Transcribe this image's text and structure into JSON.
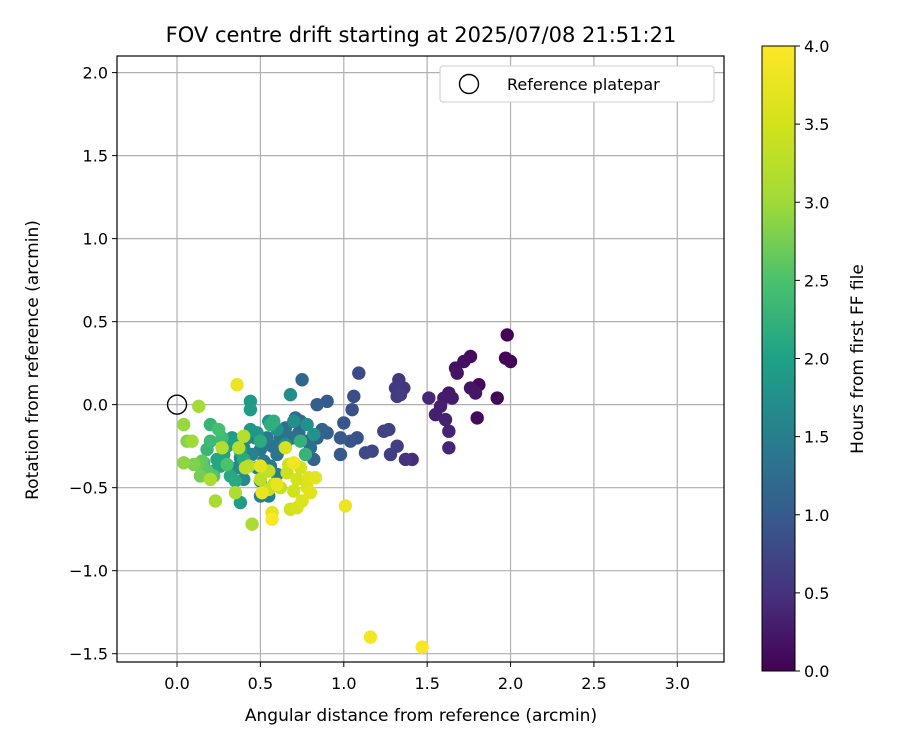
{
  "chart_data": {
    "type": "scatter",
    "title": "FOV centre drift starting at 2025/07/08 21:51:21",
    "xlabel": "Angular distance from reference (arcmin)",
    "ylabel": "Rotation from reference (arcmin)",
    "xlim": [
      -0.36,
      3.28
    ],
    "ylim": [
      -1.55,
      2.1
    ],
    "x_ticks": [
      0.0,
      0.5,
      1.0,
      1.5,
      2.0,
      2.5,
      3.0
    ],
    "x_tick_labels": [
      "0.0",
      "0.5",
      "1.0",
      "1.5",
      "2.0",
      "2.5",
      "3.0"
    ],
    "y_ticks": [
      -1.5,
      -1.0,
      -0.5,
      0.0,
      0.5,
      1.0,
      1.5,
      2.0
    ],
    "y_tick_labels": [
      "−1.5",
      "−1.0",
      "−0.5",
      "0.0",
      "0.5",
      "1.0",
      "1.5",
      "2.0"
    ],
    "grid": true,
    "legend": {
      "position": "top-right",
      "entries": [
        "Reference platepar"
      ]
    },
    "reference_point": {
      "x": 0.0,
      "y": 0.0,
      "label": "Reference platepar"
    },
    "colorbar": {
      "label": "Hours from first FF file",
      "colormap": "viridis",
      "range": [
        0.0,
        4.0
      ],
      "ticks": [
        0.0,
        0.5,
        1.0,
        1.5,
        2.0,
        2.5,
        3.0,
        3.5,
        4.0
      ],
      "tick_labels": [
        "0.0",
        "0.5",
        "1.0",
        "1.5",
        "2.0",
        "2.5",
        "3.0",
        "3.5",
        "4.0"
      ]
    },
    "points": [
      {
        "x": 1.98,
        "y": 0.42,
        "c": 0.02
      },
      {
        "x": 1.97,
        "y": 0.28,
        "c": 0.03
      },
      {
        "x": 2.0,
        "y": 0.26,
        "c": 0.04
      },
      {
        "x": 1.92,
        "y": 0.04,
        "c": 0.05
      },
      {
        "x": 1.81,
        "y": 0.12,
        "c": 0.08
      },
      {
        "x": 1.8,
        "y": -0.08,
        "c": 0.1
      },
      {
        "x": 1.76,
        "y": 0.29,
        "c": 0.12
      },
      {
        "x": 1.72,
        "y": 0.26,
        "c": 0.15
      },
      {
        "x": 1.67,
        "y": 0.22,
        "c": 0.17
      },
      {
        "x": 1.68,
        "y": 0.19,
        "c": 0.18
      },
      {
        "x": 1.76,
        "y": 0.1,
        "c": 0.2
      },
      {
        "x": 1.79,
        "y": 0.07,
        "c": 0.22
      },
      {
        "x": 1.63,
        "y": 0.07,
        "c": 0.24
      },
      {
        "x": 1.65,
        "y": 0.04,
        "c": 0.26
      },
      {
        "x": 1.6,
        "y": 0.04,
        "c": 0.28
      },
      {
        "x": 1.58,
        "y": -0.01,
        "c": 0.3
      },
      {
        "x": 1.55,
        "y": -0.06,
        "c": 0.32
      },
      {
        "x": 1.61,
        "y": -0.09,
        "c": 0.34
      },
      {
        "x": 1.63,
        "y": -0.16,
        "c": 0.36
      },
      {
        "x": 1.63,
        "y": -0.26,
        "c": 0.38
      },
      {
        "x": 1.51,
        "y": 0.04,
        "c": 0.4
      },
      {
        "x": 1.41,
        "y": -0.33,
        "c": 0.45
      },
      {
        "x": 1.37,
        "y": -0.33,
        "c": 0.5
      },
      {
        "x": 1.36,
        "y": 0.1,
        "c": 0.52
      },
      {
        "x": 1.33,
        "y": 0.15,
        "c": 0.55
      },
      {
        "x": 1.31,
        "y": 0.1,
        "c": 0.58
      },
      {
        "x": 1.32,
        "y": 0.05,
        "c": 0.6
      },
      {
        "x": 1.34,
        "y": 0.06,
        "c": 0.62
      },
      {
        "x": 1.32,
        "y": -0.25,
        "c": 0.64
      },
      {
        "x": 1.28,
        "y": -0.3,
        "c": 0.66
      },
      {
        "x": 1.27,
        "y": -0.15,
        "c": 0.68
      },
      {
        "x": 1.24,
        "y": -0.16,
        "c": 0.7
      },
      {
        "x": 1.17,
        "y": -0.28,
        "c": 0.74
      },
      {
        "x": 1.13,
        "y": -0.29,
        "c": 0.78
      },
      {
        "x": 1.09,
        "y": 0.19,
        "c": 0.8
      },
      {
        "x": 1.06,
        "y": 0.05,
        "c": 0.83
      },
      {
        "x": 1.05,
        "y": -0.03,
        "c": 0.86
      },
      {
        "x": 1.08,
        "y": -0.2,
        "c": 0.88
      },
      {
        "x": 1.04,
        "y": -0.22,
        "c": 0.9
      },
      {
        "x": 1.0,
        "y": -0.11,
        "c": 0.93
      },
      {
        "x": 0.98,
        "y": -0.2,
        "c": 0.96
      },
      {
        "x": 0.98,
        "y": -0.3,
        "c": 0.98
      },
      {
        "x": 0.9,
        "y": 0.02,
        "c": 1.0
      },
      {
        "x": 0.84,
        "y": 0.0,
        "c": 1.03
      },
      {
        "x": 0.9,
        "y": -0.17,
        "c": 1.06
      },
      {
        "x": 0.87,
        "y": -0.15,
        "c": 1.08
      },
      {
        "x": 0.84,
        "y": -0.2,
        "c": 1.1
      },
      {
        "x": 0.82,
        "y": -0.33,
        "c": 1.12
      },
      {
        "x": 0.75,
        "y": 0.15,
        "c": 1.15
      },
      {
        "x": 0.74,
        "y": -0.1,
        "c": 1.18
      },
      {
        "x": 0.71,
        "y": -0.08,
        "c": 1.2
      },
      {
        "x": 0.73,
        "y": -0.17,
        "c": 1.22
      },
      {
        "x": 0.78,
        "y": -0.22,
        "c": 1.24
      },
      {
        "x": 0.8,
        "y": -0.26,
        "c": 1.26
      },
      {
        "x": 0.69,
        "y": -0.2,
        "c": 1.28
      },
      {
        "x": 0.65,
        "y": -0.14,
        "c": 1.3
      },
      {
        "x": 0.62,
        "y": -0.2,
        "c": 1.32
      },
      {
        "x": 0.57,
        "y": -0.25,
        "c": 1.34
      },
      {
        "x": 0.6,
        "y": -0.3,
        "c": 1.36
      },
      {
        "x": 0.54,
        "y": -0.2,
        "c": 1.38
      },
      {
        "x": 0.5,
        "y": -0.27,
        "c": 1.4
      },
      {
        "x": 0.52,
        "y": -0.34,
        "c": 1.42
      },
      {
        "x": 0.56,
        "y": -0.37,
        "c": 1.44
      },
      {
        "x": 0.6,
        "y": -0.42,
        "c": 1.46
      },
      {
        "x": 0.5,
        "y": -0.46,
        "c": 1.48
      },
      {
        "x": 0.5,
        "y": -0.55,
        "c": 1.5
      },
      {
        "x": 0.55,
        "y": -0.55,
        "c": 1.52
      },
      {
        "x": 0.48,
        "y": -0.38,
        "c": 1.54
      },
      {
        "x": 0.45,
        "y": -0.3,
        "c": 1.56
      },
      {
        "x": 0.42,
        "y": -0.2,
        "c": 1.58
      },
      {
        "x": 0.4,
        "y": -0.26,
        "c": 1.6
      },
      {
        "x": 0.47,
        "y": -0.2,
        "c": 1.62
      },
      {
        "x": 0.38,
        "y": -0.32,
        "c": 1.64
      },
      {
        "x": 0.36,
        "y": -0.38,
        "c": 1.66
      },
      {
        "x": 0.4,
        "y": -0.45,
        "c": 1.68
      },
      {
        "x": 0.68,
        "y": 0.06,
        "c": 1.7
      },
      {
        "x": 0.7,
        "y": -0.1,
        "c": 1.72
      },
      {
        "x": 0.65,
        "y": -0.24,
        "c": 1.74
      },
      {
        "x": 0.78,
        "y": -0.12,
        "c": 1.76
      },
      {
        "x": 0.82,
        "y": -0.18,
        "c": 1.78
      },
      {
        "x": 0.6,
        "y": -0.15,
        "c": 1.8
      },
      {
        "x": 0.55,
        "y": -0.1,
        "c": 1.82
      },
      {
        "x": 0.48,
        "y": -0.17,
        "c": 1.84
      },
      {
        "x": 0.44,
        "y": -0.15,
        "c": 1.86
      },
      {
        "x": 0.44,
        "y": 0.02,
        "c": 1.88
      },
      {
        "x": 0.44,
        "y": -0.03,
        "c": 1.9
      },
      {
        "x": 0.38,
        "y": -0.59,
        "c": 1.92
      },
      {
        "x": 0.33,
        "y": -0.2,
        "c": 1.94
      },
      {
        "x": 0.35,
        "y": -0.23,
        "c": 1.96
      },
      {
        "x": 0.38,
        "y": -0.28,
        "c": 1.98
      },
      {
        "x": 0.3,
        "y": -0.25,
        "c": 2.0
      },
      {
        "x": 0.28,
        "y": -0.3,
        "c": 2.02
      },
      {
        "x": 0.26,
        "y": -0.37,
        "c": 2.04
      },
      {
        "x": 0.24,
        "y": -0.33,
        "c": 2.06
      },
      {
        "x": 0.22,
        "y": -0.4,
        "c": 2.08
      },
      {
        "x": 0.32,
        "y": -0.43,
        "c": 2.1
      },
      {
        "x": 0.35,
        "y": -0.46,
        "c": 2.12
      },
      {
        "x": 0.4,
        "y": -0.33,
        "c": 2.14
      },
      {
        "x": 0.5,
        "y": -0.22,
        "c": 2.16
      },
      {
        "x": 0.56,
        "y": -0.12,
        "c": 2.18
      },
      {
        "x": 0.58,
        "y": -0.1,
        "c": 2.2
      },
      {
        "x": 0.74,
        "y": -0.22,
        "c": 2.24
      },
      {
        "x": 0.77,
        "y": -0.3,
        "c": 2.28
      },
      {
        "x": 0.2,
        "y": -0.12,
        "c": 2.3
      },
      {
        "x": 0.18,
        "y": -0.27,
        "c": 2.32
      },
      {
        "x": 0.16,
        "y": -0.35,
        "c": 2.34
      },
      {
        "x": 0.2,
        "y": -0.22,
        "c": 2.36
      },
      {
        "x": 0.27,
        "y": -0.2,
        "c": 2.4
      },
      {
        "x": 0.25,
        "y": -0.15,
        "c": 2.45
      },
      {
        "x": 0.3,
        "y": -0.36,
        "c": 2.5
      },
      {
        "x": 0.22,
        "y": -0.43,
        "c": 2.55
      },
      {
        "x": 0.18,
        "y": -0.4,
        "c": 2.6
      },
      {
        "x": 0.15,
        "y": -0.34,
        "c": 2.65
      },
      {
        "x": 0.12,
        "y": -0.36,
        "c": 2.7
      },
      {
        "x": 0.14,
        "y": -0.43,
        "c": 2.75
      },
      {
        "x": 0.1,
        "y": -0.36,
        "c": 2.8
      },
      {
        "x": 0.06,
        "y": -0.22,
        "c": 2.85
      },
      {
        "x": 0.04,
        "y": -0.35,
        "c": 2.9
      },
      {
        "x": 0.04,
        "y": -0.12,
        "c": 2.95
      },
      {
        "x": 0.09,
        "y": -0.22,
        "c": 3.0
      },
      {
        "x": 0.13,
        "y": -0.01,
        "c": 3.05
      },
      {
        "x": 0.23,
        "y": -0.58,
        "c": 3.08
      },
      {
        "x": 0.45,
        "y": -0.72,
        "c": 3.1
      },
      {
        "x": 0.2,
        "y": -0.45,
        "c": 3.12
      },
      {
        "x": 0.35,
        "y": -0.53,
        "c": 3.15
      },
      {
        "x": 0.27,
        "y": -0.26,
        "c": 3.18
      },
      {
        "x": 0.37,
        "y": -0.26,
        "c": 3.2
      },
      {
        "x": 0.4,
        "y": -0.19,
        "c": 3.22
      },
      {
        "x": 0.43,
        "y": -0.37,
        "c": 3.25
      },
      {
        "x": 0.41,
        "y": -0.38,
        "c": 3.28
      },
      {
        "x": 0.5,
        "y": -0.45,
        "c": 3.3
      },
      {
        "x": 0.55,
        "y": -0.4,
        "c": 3.32
      },
      {
        "x": 0.58,
        "y": -0.48,
        "c": 3.35
      },
      {
        "x": 0.62,
        "y": -0.5,
        "c": 3.38
      },
      {
        "x": 0.55,
        "y": -0.51,
        "c": 3.4
      },
      {
        "x": 0.66,
        "y": -0.41,
        "c": 3.42
      },
      {
        "x": 0.67,
        "y": -0.36,
        "c": 3.45
      },
      {
        "x": 0.7,
        "y": -0.52,
        "c": 3.48
      },
      {
        "x": 0.68,
        "y": -0.63,
        "c": 3.5
      },
      {
        "x": 0.72,
        "y": -0.45,
        "c": 3.52
      },
      {
        "x": 0.74,
        "y": -0.38,
        "c": 3.54
      },
      {
        "x": 0.65,
        "y": -0.26,
        "c": 3.56
      },
      {
        "x": 0.72,
        "y": -0.62,
        "c": 3.58
      },
      {
        "x": 0.75,
        "y": -0.58,
        "c": 3.6
      },
      {
        "x": 0.78,
        "y": -0.5,
        "c": 3.62
      },
      {
        "x": 0.79,
        "y": -0.44,
        "c": 3.64
      },
      {
        "x": 0.8,
        "y": -0.53,
        "c": 3.66
      },
      {
        "x": 0.83,
        "y": -0.44,
        "c": 3.68
      },
      {
        "x": 0.5,
        "y": -0.37,
        "c": 3.7
      },
      {
        "x": 0.57,
        "y": -0.65,
        "c": 3.72
      },
      {
        "x": 0.6,
        "y": -0.48,
        "c": 3.75
      },
      {
        "x": 0.51,
        "y": -0.53,
        "c": 3.78
      },
      {
        "x": 0.36,
        "y": 0.12,
        "c": 3.8
      },
      {
        "x": 1.01,
        "y": -0.61,
        "c": 3.82
      },
      {
        "x": 0.7,
        "y": -0.35,
        "c": 3.85
      },
      {
        "x": 1.16,
        "y": -1.4,
        "c": 3.9
      },
      {
        "x": 1.47,
        "y": -1.46,
        "c": 3.95
      },
      {
        "x": 0.57,
        "y": -0.69,
        "c": 3.98
      }
    ]
  }
}
